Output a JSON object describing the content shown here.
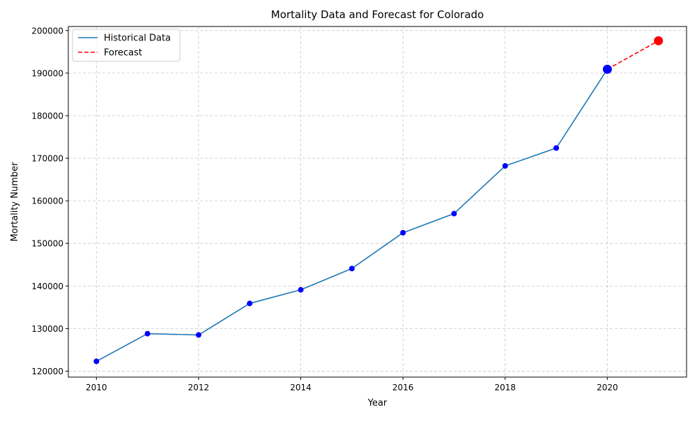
{
  "chart_data": {
    "type": "line",
    "title": "Mortality Data and Forecast for Colorado",
    "xlabel": "Year",
    "ylabel": "Mortality Number",
    "xlim": [
      2009.45,
      2021.55
    ],
    "ylim": [
      118600,
      200950
    ],
    "x_ticks": [
      2010,
      2012,
      2014,
      2016,
      2018,
      2020
    ],
    "y_ticks": [
      120000,
      130000,
      140000,
      150000,
      160000,
      170000,
      180000,
      190000,
      200000
    ],
    "grid": true,
    "legend_position": "top-left",
    "series": [
      {
        "name": "Historical Data",
        "style": "solid",
        "color": "#1f77b4",
        "marker_color": "#0000ff",
        "x": [
          2010,
          2011,
          2012,
          2013,
          2014,
          2015,
          2016,
          2017,
          2018,
          2019,
          2020
        ],
        "y": [
          122300,
          128800,
          128500,
          135900,
          139100,
          144100,
          152500,
          157000,
          168200,
          172400,
          190900
        ]
      },
      {
        "name": "Forecast",
        "style": "dashed",
        "color": "#ff0000",
        "marker_color": "#ff0000",
        "x": [
          2020,
          2021
        ],
        "y": [
          190900,
          197600
        ]
      }
    ],
    "highlight_points": [
      {
        "x": 2020,
        "y": 190900,
        "color": "#0000ff"
      },
      {
        "x": 2021,
        "y": 197600,
        "color": "#ff0000"
      }
    ]
  }
}
